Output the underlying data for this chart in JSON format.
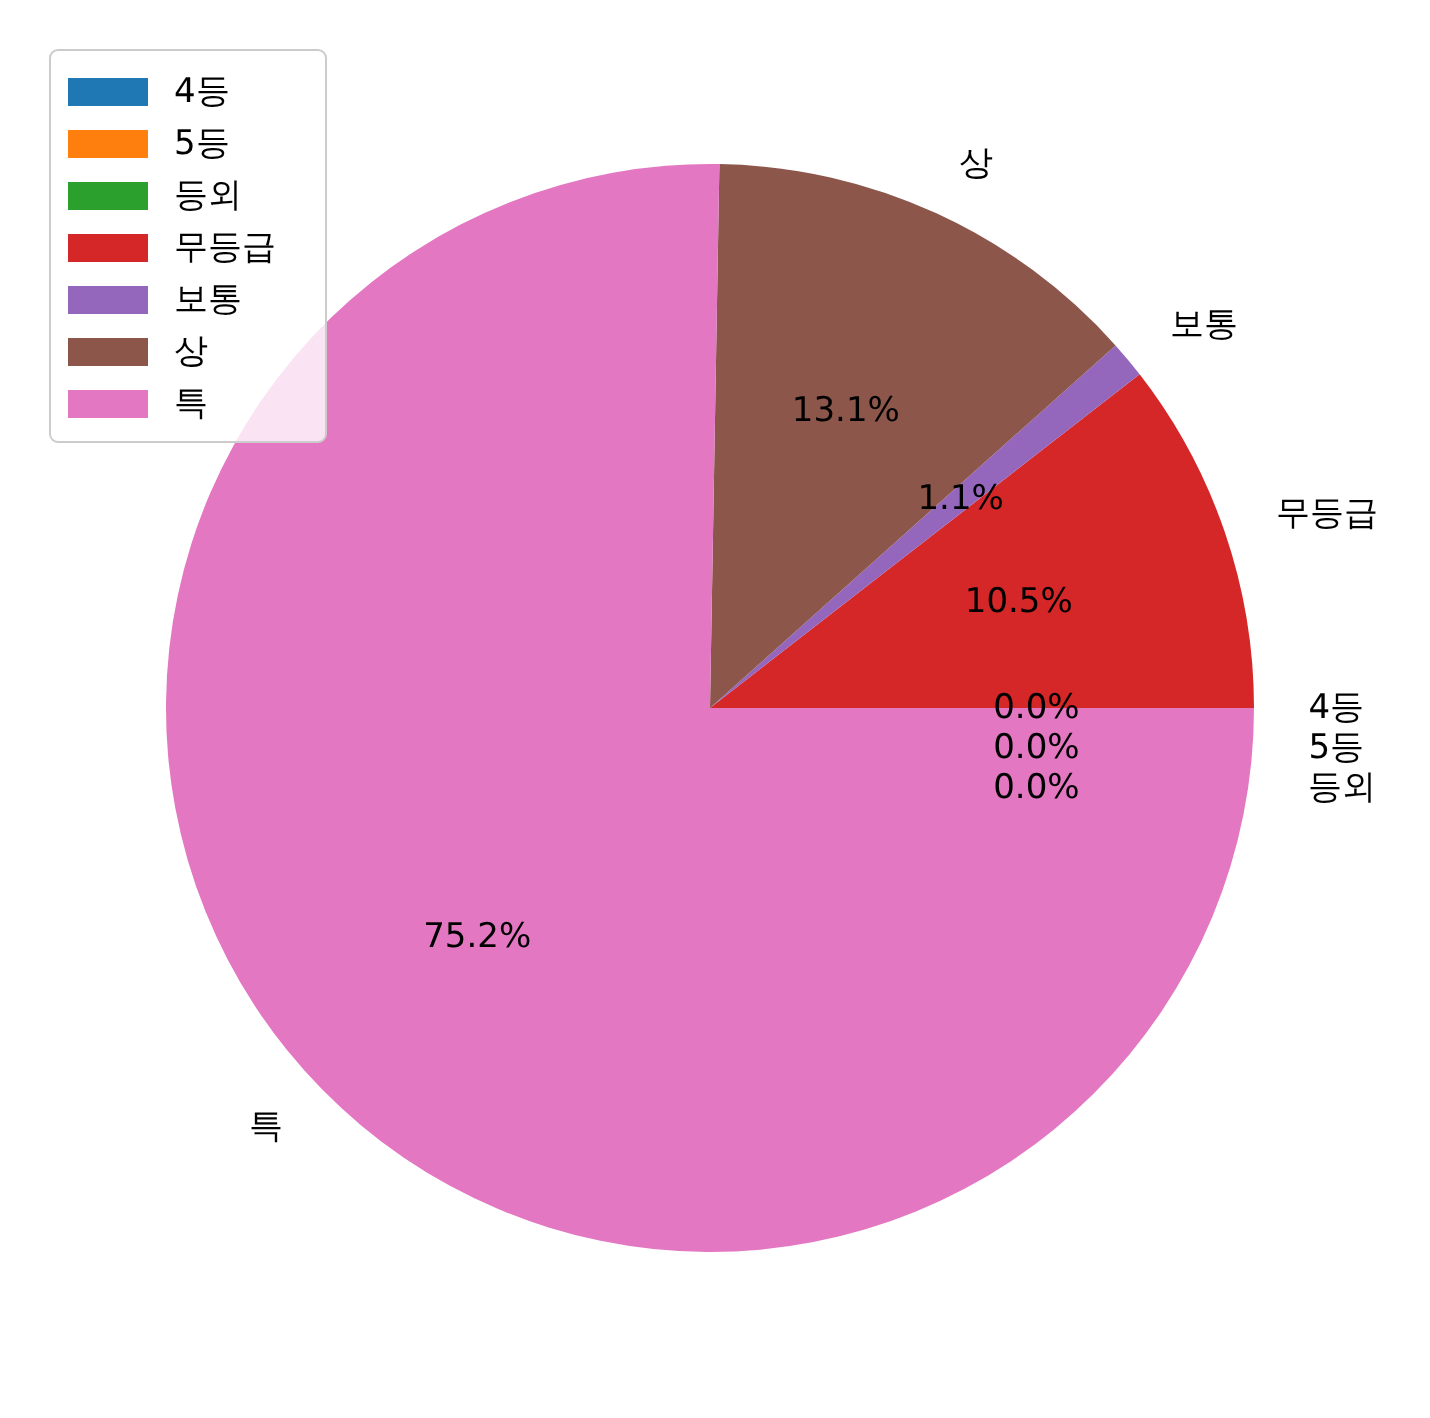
{
  "chart_data": {
    "type": "pie",
    "categories": [
      "4등",
      "5등",
      "등외",
      "무등급",
      "보통",
      "상",
      "특"
    ],
    "values": [
      0.0,
      0.0,
      0.0,
      10.5,
      1.1,
      13.1,
      75.2
    ],
    "value_labels": [
      "0.0%",
      "0.0%",
      "0.0%",
      "10.5%",
      "1.1%",
      "13.1%",
      "75.2%"
    ],
    "colors": [
      "#1f77b4",
      "#ff7f0e",
      "#2ca02c",
      "#d62728",
      "#9467bd",
      "#8c564b",
      "#e377c2"
    ],
    "legend": "top left"
  }
}
